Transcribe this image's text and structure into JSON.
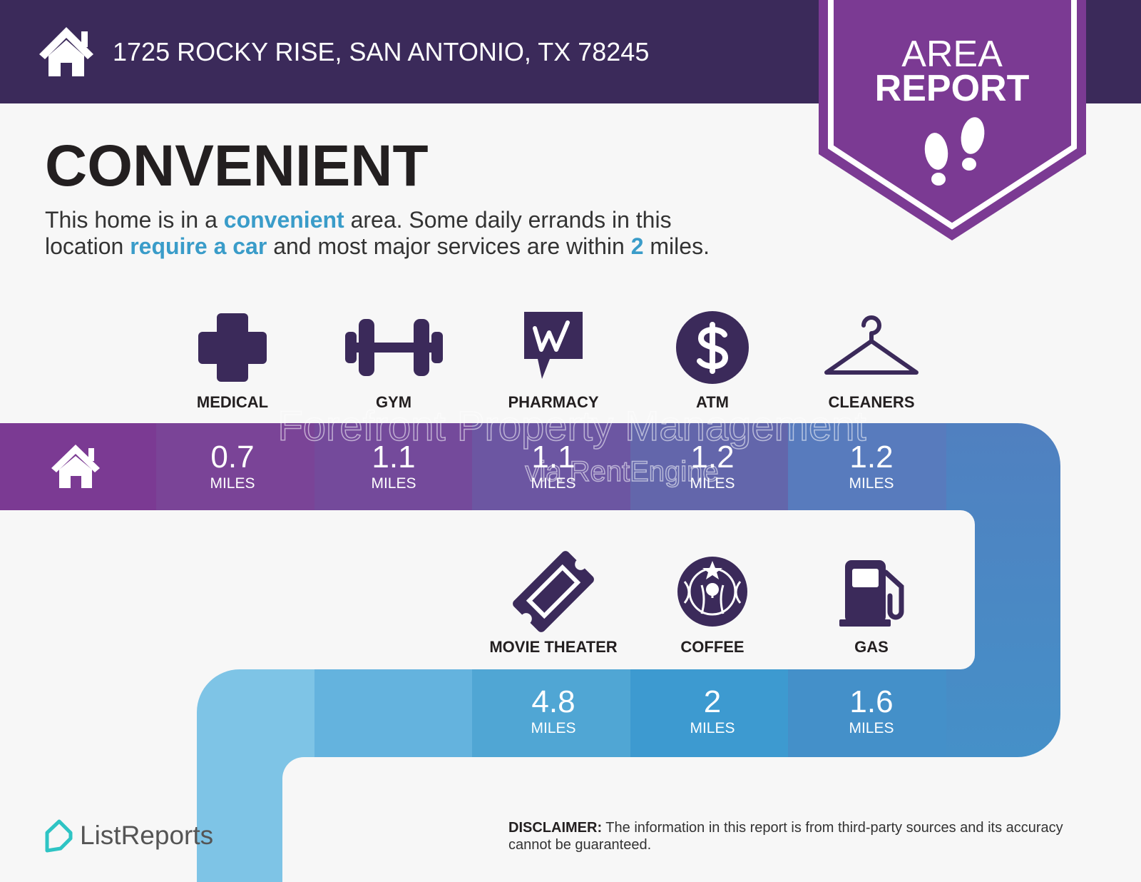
{
  "header": {
    "address": "1725 ROCKY RISE, SAN ANTONIO, TX 78245"
  },
  "badge": {
    "line1": "AREA",
    "line2": "REPORT"
  },
  "title": "CONVENIENT",
  "description": [
    {
      "text": "This home is in a ",
      "highlight": false
    },
    {
      "text": "convenient",
      "highlight": true
    },
    {
      "text": " area. Some daily errands in this",
      "highlight": false
    },
    {
      "text": "location ",
      "highlight": false
    },
    {
      "text": "require a car",
      "highlight": true
    },
    {
      "text": " and most major services are within ",
      "highlight": false
    },
    {
      "text": "2",
      "highlight": true
    },
    {
      "text": " miles.",
      "highlight": false
    }
  ],
  "amenities": [
    {
      "label": "MEDICAL",
      "distance": 0.7,
      "unit": "MILES"
    },
    {
      "label": "GYM",
      "distance": 1.1,
      "unit": "MILES"
    },
    {
      "label": "PHARMACY",
      "distance": 1.1,
      "unit": "MILES"
    },
    {
      "label": "ATM",
      "distance": 1.2,
      "unit": "MILES"
    },
    {
      "label": "CLEANERS",
      "distance": 1.2,
      "unit": "MILES"
    },
    {
      "label": "MOVIE THEATER",
      "distance": 4.8,
      "unit": "MILES"
    },
    {
      "label": "COFFEE",
      "distance": 2,
      "unit": "MILES"
    },
    {
      "label": "GAS",
      "distance": 1.6,
      "unit": "MILES"
    }
  ],
  "watermark": {
    "line1": "Forefront Property Management",
    "line2": "via RentEngine"
  },
  "footer": {
    "logo": "ListReports",
    "disclaimer_label": "DISCLAIMER:",
    "disclaimer_text": " The information in this report is from third-party sources and its accuracy cannot be guaranteed."
  }
}
